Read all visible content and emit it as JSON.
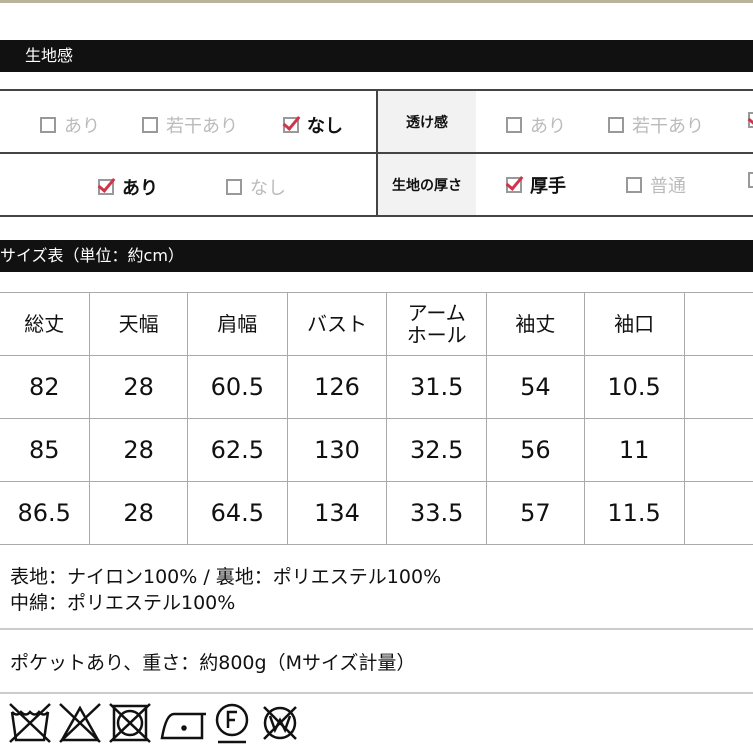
{
  "fabric": {
    "title": "生地感",
    "row1": {
      "left": [
        {
          "label": "あり",
          "checked": false
        },
        {
          "label": "若干あり",
          "checked": false
        },
        {
          "label": "なし",
          "checked": true
        }
      ],
      "right_label": "透け感",
      "right": [
        {
          "label": "あり",
          "checked": false
        },
        {
          "label": "若干あり",
          "checked": false
        }
      ]
    },
    "row2": {
      "left": [
        {
          "label": "あり",
          "checked": true
        },
        {
          "label": "なし",
          "checked": false
        }
      ],
      "right_label": "生地の厚さ",
      "right": [
        {
          "label": "厚手",
          "checked": true
        },
        {
          "label": "普通",
          "checked": false
        }
      ]
    }
  },
  "size": {
    "title": "サイズ表（単位：約cm）",
    "headers": [
      "総丈",
      "天幅",
      "肩幅",
      "バスト",
      "アーム\nホール",
      "袖丈",
      "袖口"
    ],
    "rows": [
      [
        "82",
        "28",
        "60.5",
        "126",
        "31.5",
        "54",
        "10.5"
      ],
      [
        "85",
        "28",
        "62.5",
        "130",
        "32.5",
        "56",
        "11"
      ],
      [
        "86.5",
        "28",
        "64.5",
        "134",
        "33.5",
        "57",
        "11.5"
      ]
    ]
  },
  "material": {
    "line1": "表地：ナイロン100%  /  裏地：ポリエステル100%",
    "line2": "中綿：ポリエステル100%"
  },
  "note": "ポケットあり、重さ：約800g（Mサイズ計量）",
  "care_icons": [
    "no-wash-icon",
    "no-bleach-icon",
    "no-tumble-dry-icon",
    "iron-low-icon",
    "dry-clean-f-icon",
    "no-wet-clean-icon"
  ],
  "colors": {
    "check": "#d0344a",
    "bar": "#111111"
  }
}
